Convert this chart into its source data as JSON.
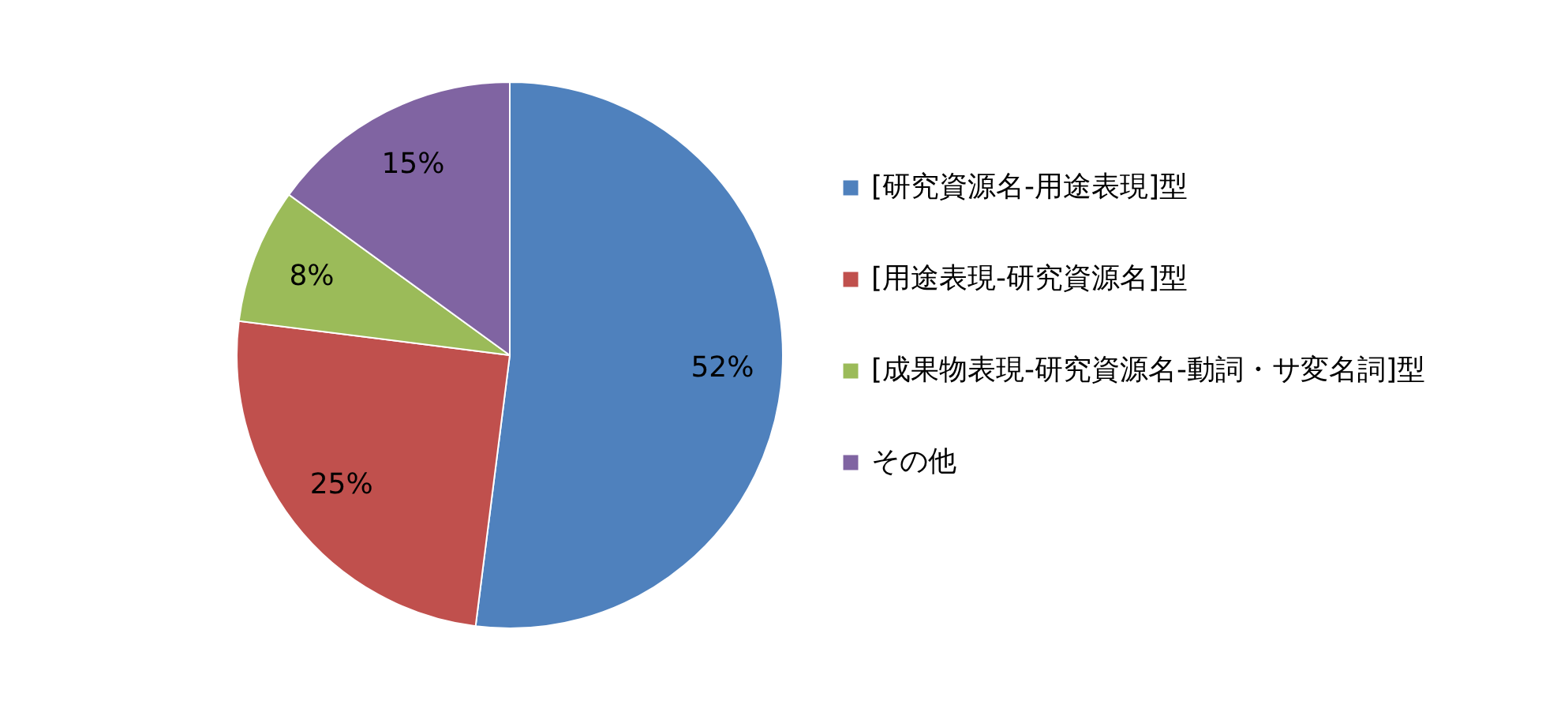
{
  "chart_data": {
    "type": "pie",
    "categories": [
      "[研究資源名-用途表現]型",
      "[用途表現-研究資源名]型",
      "[成果物表現-研究資源名-動詞・サ変名詞]型",
      "その他"
    ],
    "values": [
      52,
      25,
      8,
      15
    ],
    "colors": [
      "#4f81bd",
      "#c0504d",
      "#9bbb59",
      "#8064a2"
    ],
    "value_labels": [
      "52%",
      "25%",
      "8%",
      "15%"
    ],
    "legend": "right"
  }
}
